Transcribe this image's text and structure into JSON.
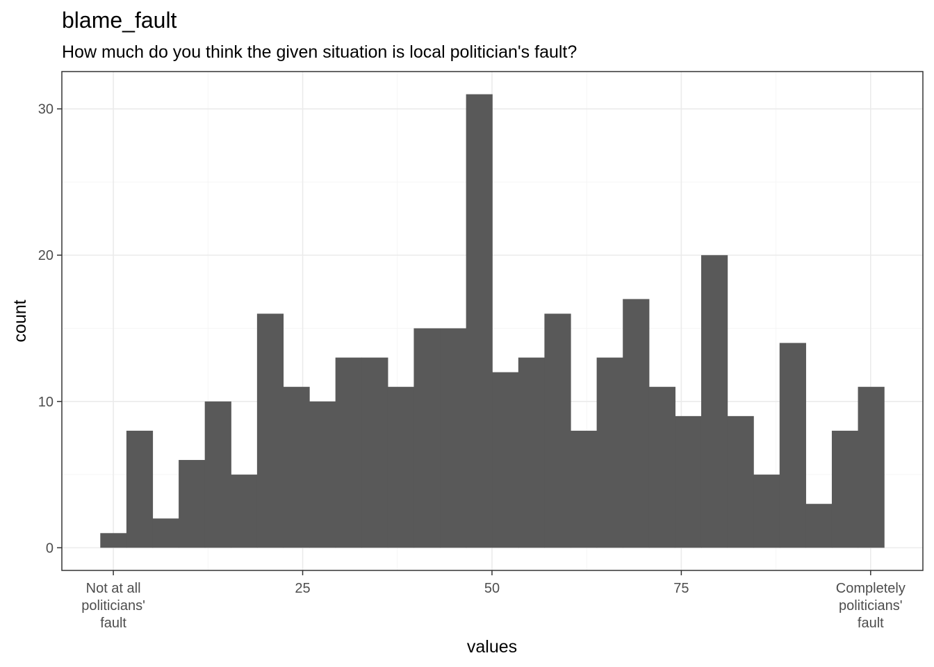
{
  "chart_data": {
    "type": "bar",
    "title": "blame_fault",
    "subtitle": "How much do you think the given situation is local politician's fault?",
    "xlabel": "values",
    "ylabel": "count",
    "bins": [
      {
        "x": 0,
        "count": 1
      },
      {
        "x": 3.45,
        "count": 8
      },
      {
        "x": 6.9,
        "count": 2
      },
      {
        "x": 10.35,
        "count": 6
      },
      {
        "x": 13.8,
        "count": 10
      },
      {
        "x": 17.25,
        "count": 5
      },
      {
        "x": 20.7,
        "count": 16
      },
      {
        "x": 24.15,
        "count": 11
      },
      {
        "x": 27.6,
        "count": 10
      },
      {
        "x": 31.05,
        "count": 13
      },
      {
        "x": 34.5,
        "count": 13
      },
      {
        "x": 37.95,
        "count": 11
      },
      {
        "x": 41.4,
        "count": 15
      },
      {
        "x": 44.85,
        "count": 15
      },
      {
        "x": 48.3,
        "count": 31
      },
      {
        "x": 51.75,
        "count": 12
      },
      {
        "x": 55.2,
        "count": 13
      },
      {
        "x": 58.65,
        "count": 16
      },
      {
        "x": 62.1,
        "count": 8
      },
      {
        "x": 65.55,
        "count": 13
      },
      {
        "x": 69,
        "count": 17
      },
      {
        "x": 72.45,
        "count": 11
      },
      {
        "x": 75.9,
        "count": 9
      },
      {
        "x": 79.35,
        "count": 20
      },
      {
        "x": 82.8,
        "count": 9
      },
      {
        "x": 86.25,
        "count": 5
      },
      {
        "x": 89.7,
        "count": 14
      },
      {
        "x": 93.15,
        "count": 3
      },
      {
        "x": 96.6,
        "count": 8
      },
      {
        "x": 100.05,
        "count": 11
      }
    ],
    "bin_width": 3.45,
    "xlim": [
      -6.8,
      106.9
    ],
    "ylim": [
      -1.55,
      32.55
    ],
    "x_ticks": [
      {
        "value": 0,
        "label": [
          "Not at all",
          "politicians'",
          "fault"
        ]
      },
      {
        "value": 25,
        "label": [
          "25"
        ]
      },
      {
        "value": 50,
        "label": [
          "50"
        ]
      },
      {
        "value": 75,
        "label": [
          "75"
        ]
      },
      {
        "value": 100,
        "label": [
          "Completely",
          "politicians'",
          "fault"
        ]
      }
    ],
    "y_ticks": [
      0,
      10,
      20,
      30
    ],
    "grid": true,
    "colors": {
      "bar": "#595959",
      "panel_border": "#333333",
      "grid_major": "#ebebeb",
      "grid_minor": "#f5f5f5"
    }
  }
}
